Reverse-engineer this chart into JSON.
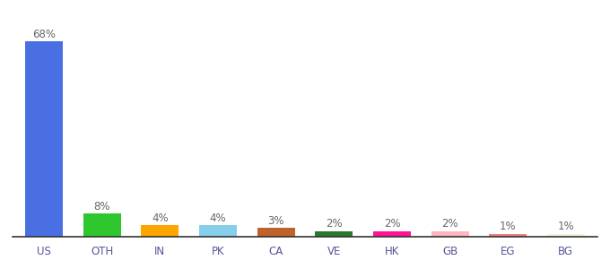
{
  "categories": [
    "US",
    "OTH",
    "IN",
    "PK",
    "CA",
    "VE",
    "HK",
    "GB",
    "EG",
    "BG"
  ],
  "values": [
    68,
    8,
    4,
    4,
    3,
    2,
    2,
    2,
    1,
    1
  ],
  "bar_colors": [
    "#4A6FE3",
    "#2DC72D",
    "#FFA500",
    "#87CEEB",
    "#C0622A",
    "#2A7A2A",
    "#FF1493",
    "#FFB6C1",
    "#F08080",
    "#F5F5DC"
  ],
  "ylim": [
    0,
    75
  ],
  "background_color": "#ffffff",
  "label_fontsize": 8.5,
  "tick_fontsize": 8.5,
  "bar_width": 0.65
}
